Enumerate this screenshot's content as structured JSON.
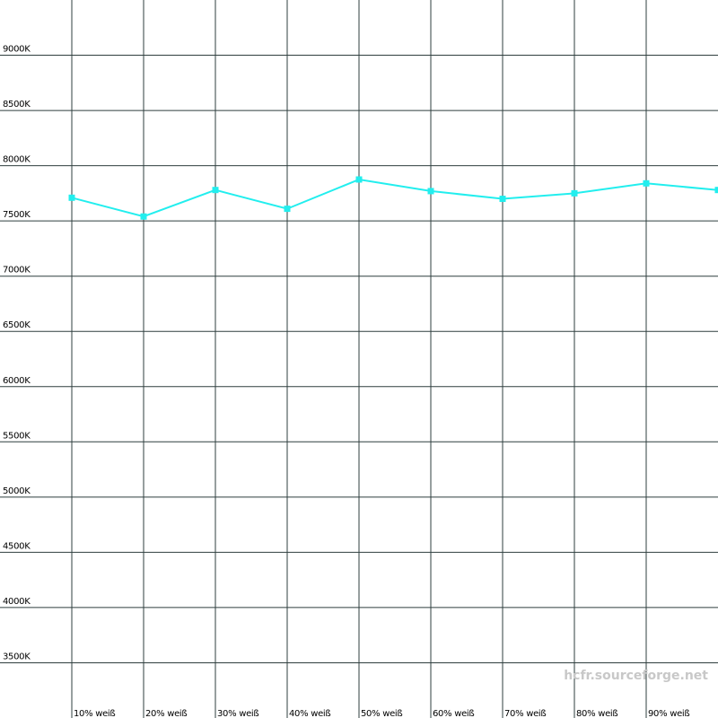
{
  "chart_data": {
    "type": "line",
    "categories": [
      "10% weiß",
      "20% weiß",
      "30% weiß",
      "40% weiß",
      "50% weiß",
      "60% weiß",
      "70% weiß",
      "80% weiß",
      "90% weiß",
      null
    ],
    "series": [
      {
        "color": "#22eeee",
        "values": [
          7710,
          7540,
          7780,
          7610,
          7875,
          7770,
          7700,
          7750,
          7840,
          7780
        ]
      }
    ],
    "ylim": [
      3000,
      9500
    ],
    "yticks": [
      {
        "value": 3500,
        "label": "3500K"
      },
      {
        "value": 4000,
        "label": "4000K"
      },
      {
        "value": 4500,
        "label": "4500K"
      },
      {
        "value": 5000,
        "label": "5000K"
      },
      {
        "value": 5500,
        "label": "5500K"
      },
      {
        "value": 6000,
        "label": "6000K"
      },
      {
        "value": 6500,
        "label": "6500K"
      },
      {
        "value": 7000,
        "label": "7000K"
      },
      {
        "value": 7500,
        "label": "7500K"
      },
      {
        "value": 8000,
        "label": "8000K"
      },
      {
        "value": 8500,
        "label": "8500K"
      },
      {
        "value": 9000,
        "label": "9000K"
      }
    ],
    "grid": true,
    "watermark": "hcfr.sourceforge.net"
  }
}
